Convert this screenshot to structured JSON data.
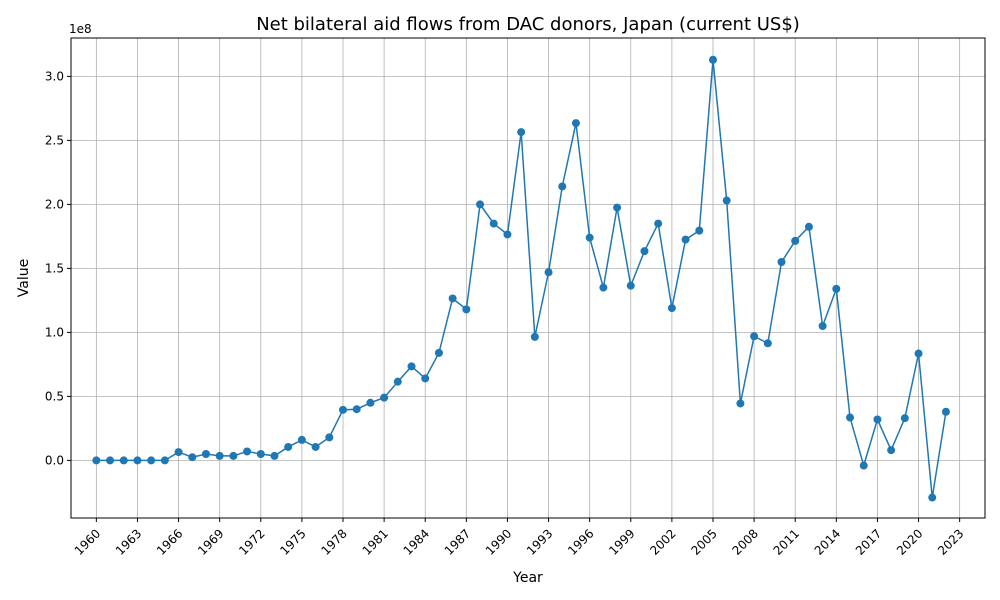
{
  "chart_data": {
    "type": "line",
    "title": "Net bilateral aid flows from DAC donors, Japan (current US$)",
    "xlabel": "Year",
    "ylabel": "Value",
    "offset_label": "1e8",
    "xlim": [
      1958.15,
      2024.85
    ],
    "ylim": [
      -45000000,
      330000000
    ],
    "grid": true,
    "x_ticks": [
      1960,
      1963,
      1966,
      1969,
      1972,
      1975,
      1978,
      1981,
      1984,
      1987,
      1990,
      1993,
      1996,
      1999,
      2002,
      2005,
      2008,
      2011,
      2014,
      2017,
      2020,
      2023
    ],
    "y_ticks": [
      0,
      50000000,
      100000000,
      150000000,
      200000000,
      250000000,
      300000000
    ],
    "y_tick_labels": [
      "0.0",
      "0.5",
      "1.0",
      "1.5",
      "2.0",
      "2.5",
      "3.0"
    ],
    "colors": {
      "series": "#1f77b4",
      "grid": "#b0b0b0"
    },
    "series": [
      {
        "x": [
          1960,
          1961,
          1962,
          1963,
          1964,
          1965,
          1966,
          1967,
          1968,
          1969,
          1970,
          1971,
          1972,
          1973,
          1974,
          1975,
          1976,
          1977,
          1978,
          1979,
          1980,
          1981,
          1982,
          1983,
          1984,
          1985,
          1986,
          1987,
          1988,
          1989,
          1990,
          1991,
          1992,
          1993,
          1994,
          1995,
          1996,
          1997,
          1998,
          1999,
          2000,
          2001,
          2002,
          2003,
          2004,
          2005,
          2006,
          2007,
          2008,
          2009,
          2010,
          2011,
          2012,
          2013,
          2014,
          2015,
          2016,
          2017,
          2018,
          2019,
          2020,
          2021,
          2022
        ],
        "values": [
          0,
          0,
          0,
          0,
          0,
          0,
          6500000,
          2500000,
          5000000,
          3500000,
          3500000,
          7000000,
          5000000,
          3500000,
          10500000,
          16000000,
          10500000,
          18000000,
          39500000,
          40000000,
          45000000,
          49000000,
          61500000,
          73500000,
          64000000,
          84000000,
          126500000,
          118000000,
          200000000,
          185000000,
          176500000,
          256500000,
          96500000,
          147000000,
          214000000,
          263500000,
          174000000,
          135000000,
          197500000,
          136500000,
          163500000,
          185000000,
          119000000,
          172500000,
          179500000,
          313000000,
          203000000,
          44500000,
          97000000,
          91500000,
          155000000,
          171500000,
          182500000,
          105000000,
          134000000,
          33500000,
          -4000000,
          32000000,
          8000000,
          33000000,
          83500000,
          -29000000,
          38000000
        ]
      }
    ]
  }
}
